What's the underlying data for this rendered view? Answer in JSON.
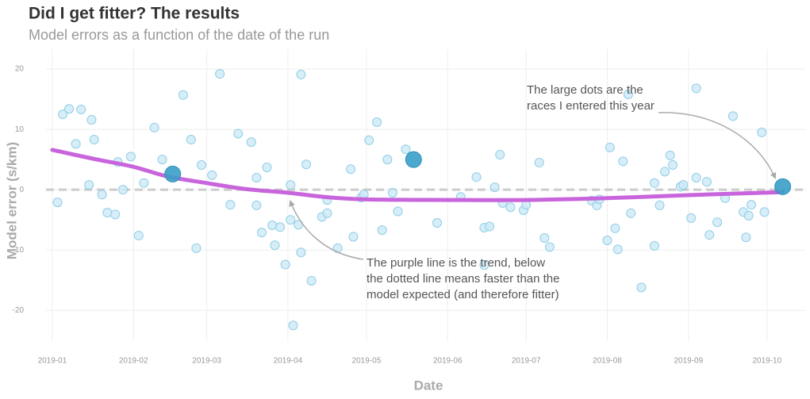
{
  "chart_data": {
    "type": "scatter",
    "title": "Did I get fitter? The results",
    "subtitle": "Model errors as a function of the date of the run",
    "x_label": "Date",
    "y_label": "Model error (s/km)",
    "xlim": [
      -2.4,
      287.6
    ],
    "xticks": [
      {
        "value": 0,
        "label": "2019-01"
      },
      {
        "value": 31,
        "label": "2019-02"
      },
      {
        "value": 59,
        "label": "2019-03"
      },
      {
        "value": 90,
        "label": "2019-04"
      },
      {
        "value": 120,
        "label": "2019-05"
      },
      {
        "value": 151,
        "label": "2019-06"
      },
      {
        "value": 181,
        "label": "2019-07"
      },
      {
        "value": 212,
        "label": "2019-08"
      },
      {
        "value": 243,
        "label": "2019-09"
      },
      {
        "value": 273,
        "label": "2019-10"
      }
    ],
    "ylim": [
      -25.1,
      23.3
    ],
    "yticks": [
      -20,
      -10,
      0,
      10,
      20
    ],
    "grid": true,
    "hline": 0,
    "series": [
      {
        "color": "#cdeaf6",
        "values": [
          -2.1,
          12.5,
          13.4,
          7.6,
          13.3,
          0.8,
          11.6,
          8.3,
          -0.8,
          -3.8,
          -4.1,
          4.6,
          0,
          5.5,
          -7.6,
          1.1,
          10.3,
          5,
          15.7,
          8.3,
          -9.7,
          4.1,
          2.4,
          19.2,
          -2.5,
          9.3,
          7.9,
          -2.6,
          2,
          -7.1,
          3.7,
          -5.9,
          -9.2,
          -6.2,
          -12.4,
          0.8,
          -5,
          -22.5,
          -5.8,
          -10.4,
          19.1,
          4.2,
          -15.1,
          -4.5,
          -1.7,
          -3.9,
          -9.7,
          3.4,
          -7.8,
          -1.3,
          -0.8,
          8.2,
          11.2,
          -6.7,
          5,
          -0.5,
          -3.6,
          6.7,
          -5.5,
          -1.2,
          2.1,
          -12.5,
          -6.3,
          -6.1,
          0.4,
          5.8,
          -2.2,
          -2.9,
          -3.4,
          -2.5,
          4.5,
          -8,
          -9.5,
          -1.8,
          -2.6,
          -1.6,
          -8.4,
          7,
          -6.4,
          -9.9,
          4.7,
          15.8,
          -3.9,
          -16.2,
          -9.3,
          1.1,
          -2.6,
          3,
          5.7,
          4.1,
          0.5,
          0.8,
          -4.7,
          2,
          16.8,
          1.3,
          -7.5,
          -5.4,
          -1.4,
          12.2,
          -3.7,
          -7.9,
          -4.3,
          -2.5,
          9.5,
          -3.7
        ],
        "x": [
          2,
          4,
          6.4,
          9,
          11,
          14,
          15,
          16,
          19,
          21,
          24,
          25,
          27,
          30,
          33,
          35,
          39,
          42,
          50,
          53,
          55,
          57,
          61,
          64,
          68,
          71,
          76,
          78,
          78,
          80,
          82,
          84,
          85,
          87,
          89,
          91,
          91,
          92,
          94,
          95,
          95,
          97,
          99,
          103,
          105,
          105,
          109,
          114,
          115,
          118,
          119,
          121,
          124,
          126,
          128,
          130,
          132,
          135,
          147,
          156,
          162,
          165,
          165,
          167,
          169,
          171,
          172,
          175,
          180,
          181,
          186,
          188,
          190,
          206,
          208,
          209,
          212,
          213,
          215,
          216,
          218,
          220,
          221,
          225,
          230,
          230,
          232,
          234,
          236,
          237,
          240,
          241,
          244,
          246,
          246,
          250,
          251,
          254,
          257,
          260,
          264,
          265,
          266,
          267,
          271,
          272
        ]
      },
      {
        "color": "#3a9ec8",
        "values": [
          2.6,
          5,
          0.5
        ],
        "x": [
          46,
          138,
          279
        ]
      }
    ],
    "trend": {
      "color": "#c864dc",
      "x": [
        0,
        16,
        31,
        44,
        59,
        74,
        90,
        104,
        120,
        151,
        181,
        212,
        243,
        279
      ],
      "values": [
        6.6,
        5.1,
        3.8,
        2.2,
        1.1,
        0.1,
        -0.5,
        -1.2,
        -1.6,
        -1.7,
        -1.7,
        -1.4,
        -0.9,
        -0.4
      ]
    },
    "annotations": [
      {
        "lines": [
          "The large dots are the",
          "races I entered this year"
        ]
      },
      {
        "lines": [
          "The purple line is the trend, below",
          "the dotted line means faster than the",
          "model expected (and therefore fitter)"
        ]
      }
    ]
  }
}
